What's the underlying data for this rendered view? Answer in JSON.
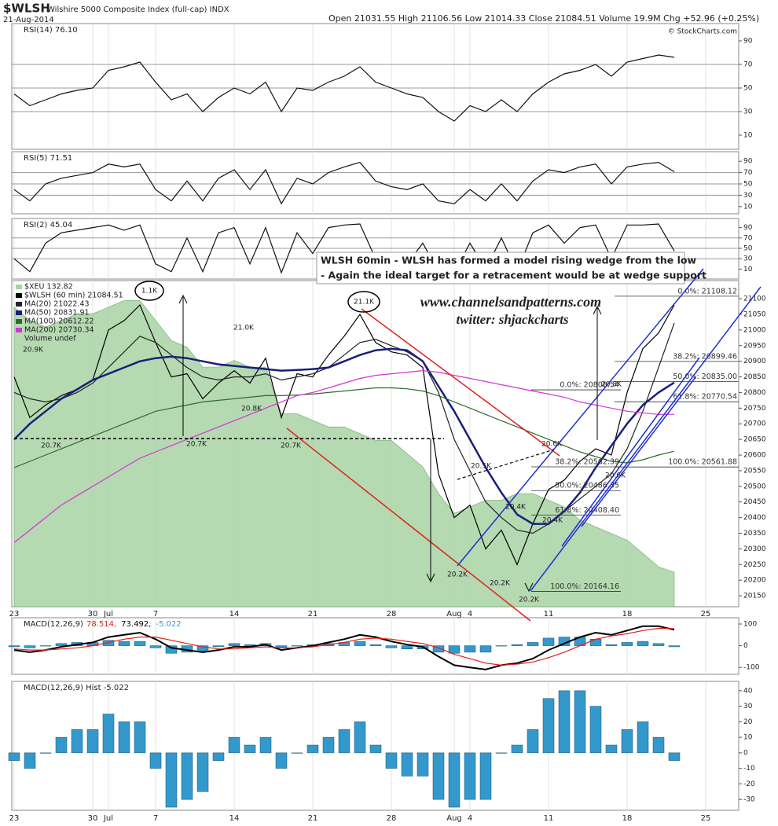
{
  "header": {
    "symbol": "$WLSH",
    "name": "Wilshire 5000 Composite Index (full-cap) INDX",
    "date": "21-Aug-2014",
    "quote": "Open 21031.55  High 21106.56  Low 21014.33  Close 21084.51  Volume 19.9M  Chg +52.96 (+0.25%)",
    "copyright": "© StockCharts.com"
  },
  "annotations": {
    "note": [
      "WLSH 60min - WLSH has formed a model rising wedge from the low",
      "- Again the ideal target for a retracement would be at wedge support"
    ],
    "website": "www.channelsandpatterns.com",
    "twitter": "twitter: shjackcharts",
    "point_labels": [
      "1.1K",
      "21.1K",
      "20.9K",
      "20.7K",
      "20.7K",
      "21.0K",
      "20.8K",
      "20.7K",
      "20.5K",
      "20.6K",
      "20.4K",
      "20.4K",
      "20.2K",
      "20.2K",
      "20.2K",
      "20.8K",
      "20.6K"
    ]
  },
  "chart_data": [
    {
      "type": "line",
      "title": "RSI(14) 76.10",
      "ylim": [
        0,
        100
      ],
      "yticks": [
        10,
        30,
        50,
        70,
        90
      ],
      "levels": [
        30,
        50,
        70
      ],
      "series": [
        {
          "name": "RSI(14)",
          "color": "#111111",
          "values": [
            45,
            35,
            40,
            45,
            48,
            50,
            65,
            68,
            72,
            55,
            40,
            45,
            30,
            42,
            50,
            45,
            55,
            30,
            50,
            48,
            55,
            60,
            68,
            55,
            50,
            45,
            42,
            30,
            22,
            35,
            30,
            40,
            30,
            45,
            55,
            62,
            65,
            70,
            60,
            72,
            75,
            78,
            76.1,
            null,
            null,
            null,
            null
          ]
        }
      ]
    },
    {
      "type": "line",
      "title": "RSI(5) 71.51",
      "ylim": [
        0,
        100
      ],
      "yticks": [
        10,
        30,
        50,
        70,
        90
      ],
      "levels": [
        30,
        50,
        70
      ],
      "series": [
        {
          "name": "RSI(5)",
          "color": "#111111",
          "values": [
            40,
            20,
            50,
            60,
            65,
            70,
            85,
            80,
            85,
            40,
            20,
            55,
            20,
            60,
            75,
            40,
            75,
            15,
            60,
            50,
            70,
            80,
            88,
            55,
            45,
            40,
            50,
            20,
            15,
            40,
            20,
            50,
            20,
            55,
            75,
            70,
            80,
            85,
            50,
            80,
            85,
            88,
            71.51,
            null,
            null,
            null,
            null
          ]
        }
      ]
    },
    {
      "type": "line",
      "title": "RSI(2) 45.04",
      "ylim": [
        0,
        100
      ],
      "yticks": [
        10,
        30,
        50,
        70,
        90
      ],
      "levels": [
        30,
        50,
        70
      ],
      "series": [
        {
          "name": "RSI(2)",
          "color": "#111111",
          "values": [
            30,
            5,
            60,
            80,
            85,
            90,
            95,
            85,
            95,
            20,
            5,
            70,
            5,
            80,
            90,
            20,
            90,
            3,
            80,
            40,
            90,
            95,
            97,
            30,
            40,
            20,
            60,
            5,
            3,
            60,
            10,
            70,
            5,
            80,
            95,
            60,
            90,
            95,
            30,
            95,
            95,
            97,
            45.04,
            null,
            null,
            null,
            null
          ]
        }
      ]
    },
    {
      "type": "line",
      "ylim": [
        20115,
        21158
      ],
      "y2lim": [
        132.3,
        137.2
      ],
      "yticks": [
        20150,
        20200,
        20250,
        20300,
        20350,
        20400,
        20450,
        20500,
        20550,
        20600,
        20650,
        20700,
        20750,
        20800,
        20850,
        20900,
        20950,
        21000,
        21050,
        21100
      ],
      "categories": [
        "23",
        null,
        null,
        null,
        null,
        "30",
        "Jul",
        null,
        null,
        "7",
        null,
        null,
        null,
        null,
        "14",
        null,
        null,
        null,
        null,
        "21",
        null,
        null,
        null,
        null,
        "28",
        null,
        null,
        null,
        "Aug",
        "4",
        null,
        null,
        null,
        null,
        "11",
        null,
        null,
        null,
        null,
        "18",
        null,
        null,
        null,
        null,
        "25",
        null,
        null
      ],
      "notes": [
        "Volume undef"
      ],
      "series": [
        {
          "name": "$XEU 132.82",
          "color": "#a9d3a4",
          "kind": "area",
          "axis": "y2",
          "values": [
            136.8,
            136.6,
            136.5,
            136.6,
            136.7,
            136.7,
            136.8,
            136.9,
            136.9,
            136.6,
            136.3,
            136.2,
            135.9,
            135.9,
            136.0,
            135.9,
            135.9,
            135.2,
            135.2,
            135.1,
            135.0,
            135.0,
            134.9,
            134.8,
            134.8,
            134.6,
            134.4,
            134.0,
            133.7,
            133.8,
            133.9,
            133.9,
            134.0,
            134.0,
            133.9,
            133.8,
            133.6,
            133.5,
            133.4,
            133.3,
            133.1,
            132.9,
            132.82,
            null,
            null,
            null,
            null
          ]
        },
        {
          "name": "$WLSH (60 min) 21084.51",
          "color": "#000000",
          "values": [
            20850,
            20720,
            20760,
            20790,
            20810,
            20840,
            21000,
            21030,
            21080,
            20960,
            20850,
            20860,
            20780,
            20830,
            20870,
            20830,
            20910,
            20720,
            20860,
            20850,
            20920,
            20980,
            21050,
            20960,
            20930,
            20920,
            20880,
            20540,
            20400,
            20440,
            20300,
            20360,
            20250,
            20380,
            20490,
            20520,
            20580,
            20620,
            20600,
            20800,
            20940,
            20990,
            21080,
            null,
            null,
            null,
            null
          ]
        },
        {
          "name": "MA(20) 21022.43",
          "color": "#222222",
          "values": [
            20800,
            20780,
            20770,
            20780,
            20800,
            20830,
            20880,
            20930,
            20980,
            20960,
            20920,
            20880,
            20850,
            20840,
            20850,
            20850,
            20860,
            20840,
            20850,
            20860,
            20880,
            20920,
            20960,
            20970,
            20950,
            20930,
            20900,
            20800,
            20650,
            20550,
            20450,
            20400,
            20360,
            20350,
            20380,
            20420,
            20460,
            20500,
            20540,
            20620,
            20740,
            20880,
            21022.43,
            null,
            null,
            null,
            null
          ]
        },
        {
          "name": "MA(50) 20831.91",
          "color": "#1a1f7a",
          "width": 2.5,
          "values": [
            20650,
            20700,
            20740,
            20780,
            20810,
            20840,
            20860,
            20880,
            20900,
            20910,
            20915,
            20910,
            20900,
            20890,
            20885,
            20880,
            20875,
            20870,
            20872,
            20875,
            20880,
            20900,
            20920,
            20935,
            20940,
            20935,
            20900,
            20820,
            20740,
            20650,
            20560,
            20480,
            20410,
            20380,
            20380,
            20420,
            20480,
            20560,
            20630,
            20700,
            20760,
            20800,
            20831.91,
            null,
            null,
            null,
            null
          ]
        },
        {
          "name": "MA(100) 20612.22",
          "color": "#2e6b2e",
          "values": [
            20560,
            20580,
            20600,
            20620,
            20640,
            20660,
            20680,
            20700,
            20720,
            20740,
            20750,
            20760,
            20770,
            20775,
            20780,
            20785,
            20790,
            20790,
            20792,
            20795,
            20800,
            20805,
            20810,
            20815,
            20815,
            20812,
            20805,
            20790,
            20770,
            20750,
            20730,
            20710,
            20690,
            20670,
            20650,
            20630,
            20610,
            20595,
            20580,
            20575,
            20585,
            20600,
            20612.22,
            null,
            null,
            null,
            null
          ]
        },
        {
          "name": "MA(200) 20730.34",
          "color": "#d633d6",
          "values": [
            20320,
            20360,
            20400,
            20440,
            20470,
            20500,
            20530,
            20560,
            20590,
            20610,
            20630,
            20650,
            20670,
            20690,
            20710,
            20730,
            20750,
            20770,
            20790,
            20800,
            20815,
            20830,
            20845,
            20855,
            20860,
            20865,
            20870,
            20865,
            20855,
            20845,
            20835,
            20825,
            20815,
            20805,
            20795,
            20785,
            20770,
            20760,
            20750,
            20740,
            20735,
            20730,
            20730.34,
            null,
            null,
            null,
            null
          ]
        }
      ],
      "fibs": [
        {
          "value": 21108.12,
          "label": "0.0%: 21108.12"
        },
        {
          "value": 20899.46,
          "label": "38.2%: 20899.46"
        },
        {
          "value": 20835.0,
          "label": "50.0%: 20835.00"
        },
        {
          "value": 20770.54,
          "label": "61.8%: 20770.54"
        },
        {
          "value": 20561.88,
          "label": "100.0%: 20561.88"
        },
        {
          "value": 20808.54,
          "label": "0.0%: 20808.54"
        },
        {
          "value": 20562.39,
          "label": "38.2%: 20562.39"
        },
        {
          "value": 20486.35,
          "label": "50.0%: 20486.35"
        },
        {
          "value": 20408.4,
          "label": "61.8%: 20408.40"
        },
        {
          "value": 20164.16,
          "label": "100.0%: 20164.16"
        }
      ]
    },
    {
      "type": "line",
      "title": "MACD(12,26,9)",
      "ylim": [
        -132,
        129
      ],
      "yticks": [
        -100,
        0,
        100
      ],
      "series": [
        {
          "name": "-5.022",
          "color": "#3399cc",
          "kind": "bar",
          "values": [
            -5,
            -10,
            0,
            10,
            15,
            15,
            25,
            20,
            20,
            -10,
            -35,
            -30,
            -25,
            -5,
            10,
            5,
            10,
            -10,
            0,
            5,
            10,
            15,
            20,
            5,
            -10,
            -15,
            -15,
            -30,
            -35,
            -30,
            -30,
            0,
            5,
            15,
            35,
            40,
            40,
            30,
            5,
            15,
            20,
            10,
            -5.022,
            null,
            null,
            null,
            null
          ]
        },
        {
          "name": "73.492,",
          "color": "#000000",
          "width": 2,
          "values": [
            -20,
            -30,
            -20,
            -5,
            5,
            15,
            40,
            50,
            60,
            30,
            -10,
            -20,
            -30,
            -20,
            -5,
            -5,
            5,
            -20,
            -10,
            0,
            15,
            30,
            50,
            40,
            20,
            5,
            -5,
            -50,
            -90,
            -100,
            -110,
            -90,
            -80,
            -60,
            -20,
            10,
            40,
            60,
            50,
            70,
            90,
            90,
            73.492,
            null,
            null,
            null,
            null
          ]
        },
        {
          "name": "78.514,",
          "color": "#e0201b",
          "values": [
            -15,
            -20,
            -20,
            -15,
            -10,
            0,
            15,
            30,
            40,
            40,
            25,
            10,
            -5,
            -15,
            -15,
            -10,
            -5,
            -10,
            -10,
            -5,
            5,
            15,
            30,
            35,
            30,
            20,
            10,
            -10,
            -40,
            -60,
            -80,
            -90,
            -85,
            -75,
            -55,
            -30,
            0,
            30,
            45,
            55,
            70,
            80,
            78.514,
            null,
            null,
            null,
            null
          ]
        }
      ]
    },
    {
      "type": "bar",
      "title": "MACD(12,26,9) Hist -5.022",
      "ylim": [
        -37,
        46
      ],
      "yticks": [
        -30,
        -20,
        -10,
        0,
        10,
        20,
        30,
        40
      ],
      "color": "#3399cc",
      "categories": [
        "23",
        null,
        null,
        null,
        null,
        "30",
        "Jul",
        null,
        null,
        "7",
        null,
        null,
        null,
        null,
        "14",
        null,
        null,
        null,
        null,
        "21",
        null,
        null,
        null,
        null,
        "28",
        null,
        null,
        null,
        "Aug",
        "4",
        null,
        null,
        null,
        null,
        "11",
        null,
        null,
        null,
        null,
        "18",
        null,
        null,
        null,
        null,
        "25",
        null,
        null
      ],
      "values": [
        -5,
        -10,
        0,
        10,
        15,
        15,
        25,
        20,
        20,
        -10,
        -35,
        -30,
        -25,
        -5,
        10,
        5,
        10,
        -10,
        0,
        5,
        10,
        15,
        20,
        5,
        -10,
        -15,
        -15,
        -30,
        -35,
        -30,
        -30,
        0,
        5,
        15,
        35,
        40,
        40,
        30,
        5,
        15,
        20,
        10,
        -5.022,
        null,
        null,
        null,
        null
      ]
    }
  ]
}
